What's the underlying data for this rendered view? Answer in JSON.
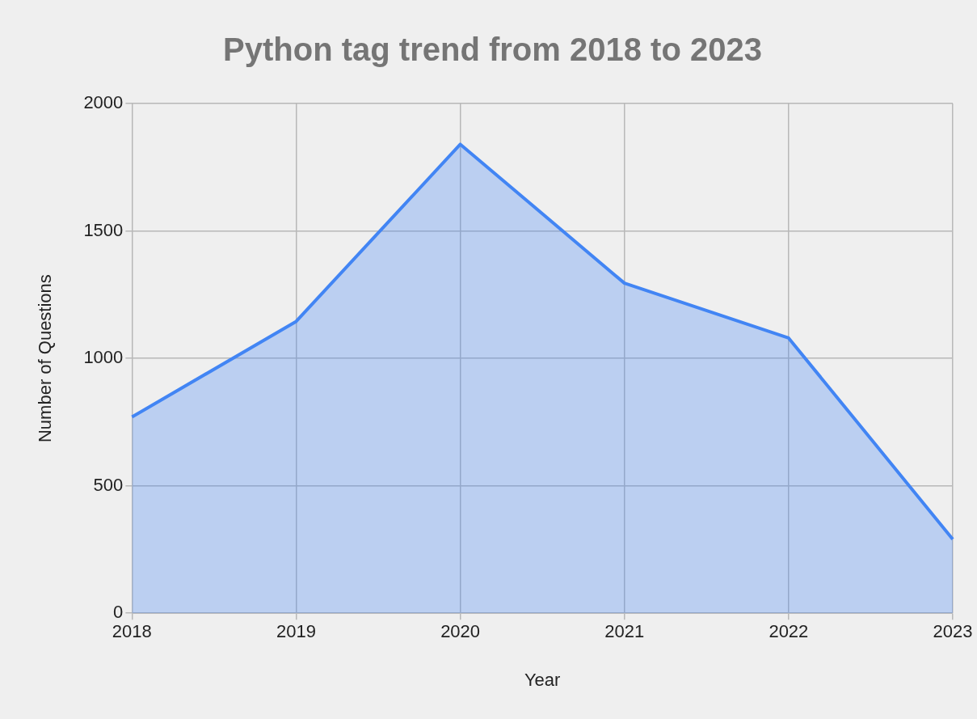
{
  "chart_data": {
    "type": "area",
    "title": "Python tag trend from 2018 to 2023",
    "xlabel": "Year",
    "ylabel": "Number of Questions",
    "categories": [
      "2018",
      "2019",
      "2020",
      "2021",
      "2022",
      "2023"
    ],
    "series": [
      {
        "color": "#4285f4",
        "values": [
          770,
          1145,
          1840,
          1295,
          1080,
          290
        ]
      }
    ],
    "ylim": [
      0,
      2000
    ],
    "yticks": [
      0,
      500,
      1000,
      1500,
      2000
    ],
    "grid": true,
    "legend": false,
    "marker": "none",
    "line_style": "solid"
  }
}
